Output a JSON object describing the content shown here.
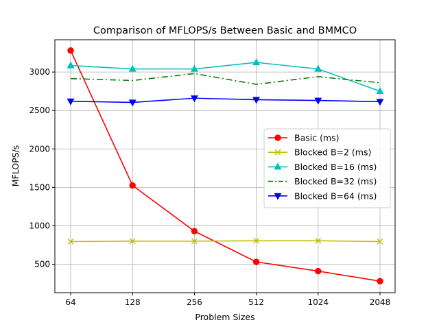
{
  "chart_data": {
    "type": "line",
    "title": "Comparison of MFLOPS/s Between Basic and BMMCO",
    "xlabel": "Problem Sizes",
    "ylabel": "MFLOPS/s",
    "categories": [
      "64",
      "128",
      "256",
      "512",
      "1024",
      "2048"
    ],
    "yticks": [
      500,
      1000,
      1500,
      2000,
      2500,
      3000
    ],
    "ylim": [
      130,
      3420
    ],
    "grid": true,
    "legend_position": "center-right",
    "series": [
      {
        "name": "Basic (ms)",
        "color": "#ff0000",
        "marker": "circle",
        "dash": "solid",
        "values": [
          3280,
          1525,
          930,
          530,
          410,
          280
        ]
      },
      {
        "name": "Blocked B=2 (ms)",
        "color": "#bfbf00",
        "marker": "x",
        "dash": "solid",
        "values": [
          795,
          800,
          800,
          805,
          805,
          795
        ]
      },
      {
        "name": "Blocked B=16 (ms)",
        "color": "#00bfbf",
        "marker": "triangle-up",
        "dash": "solid",
        "values": [
          3085,
          3040,
          3040,
          3125,
          3040,
          2750
        ]
      },
      {
        "name": "Blocked B=32 (ms)",
        "color": "#008000",
        "marker": "none",
        "dash": "dashdot",
        "values": [
          2915,
          2890,
          2980,
          2840,
          2940,
          2860
        ]
      },
      {
        "name": "Blocked B=64 (ms)",
        "color": "#0000ff",
        "marker": "triangle-down",
        "dash": "solid",
        "values": [
          2620,
          2605,
          2660,
          2640,
          2630,
          2615
        ]
      }
    ]
  }
}
